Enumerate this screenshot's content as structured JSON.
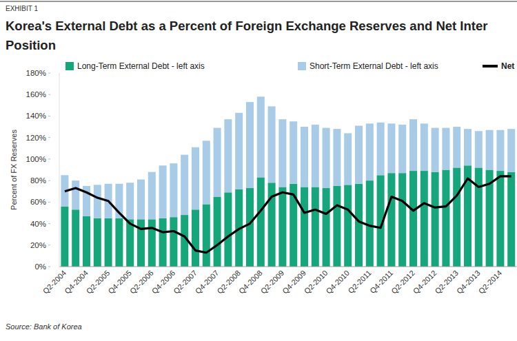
{
  "chart_data": {
    "type": "bar",
    "stacked": true,
    "annotations": [
      "EXHIBIT 1",
      "Source: Bank of Korea"
    ],
    "title": [
      "Korea's External Debt as a Percent of Foreign Exchange Reserves and Net Inter",
      "Position"
    ],
    "y_label": "Percent of FX Reserves",
    "categories": [
      "Q2-2004",
      null,
      "Q4-2004",
      null,
      "Q2-2005",
      null,
      "Q4-2005",
      null,
      "Q2-2006",
      null,
      "Q4-2006",
      null,
      "Q2-2007",
      null,
      "Q4-2007",
      null,
      "Q2-2008",
      null,
      "Q4-2008",
      null,
      "Q2-2009",
      null,
      "Q4-2009",
      null,
      "Q2-2010",
      null,
      "Q4-2010",
      null,
      "Q2-2011",
      null,
      "Q4-2011",
      null,
      "Q2-2012",
      null,
      "Q4-2012",
      null,
      "Q2-2013",
      null,
      "Q4-2013",
      null,
      "Q2-2014",
      null
    ],
    "series": [
      {
        "name": "Long-Term External Debt - left axis",
        "color": "#16a67c",
        "values": [
          56,
          53,
          47,
          45,
          45,
          45,
          44,
          44,
          44,
          45,
          46,
          48,
          53,
          58,
          65,
          69,
          72,
          73,
          83,
          78,
          74,
          77,
          74,
          74,
          73,
          75,
          76,
          77,
          80,
          85,
          87,
          87,
          89,
          89,
          88,
          90,
          92,
          94,
          92,
          90,
          89,
          88
        ]
      },
      {
        "name": "Short-Term External Debt - left axis",
        "color": "#a8cbe8",
        "values": [
          29,
          27,
          28,
          31,
          32,
          32,
          34,
          37,
          44,
          49,
          50,
          56,
          58,
          59,
          64,
          68,
          71,
          80,
          75,
          71,
          63,
          58,
          56,
          58,
          56,
          53,
          48,
          54,
          53,
          49,
          46,
          45,
          48,
          44,
          41,
          39,
          38,
          34,
          34,
          37,
          38,
          40
        ]
      },
      {
        "name": "Net",
        "color": "#000000",
        "type": "line",
        "values": [
          70,
          73,
          69,
          64,
          61,
          50,
          40,
          35,
          36,
          32,
          33,
          28,
          15,
          13,
          20,
          28,
          35,
          40,
          52,
          65,
          69,
          67,
          50,
          53,
          49,
          57,
          53,
          42,
          38,
          36,
          65,
          61,
          52,
          59,
          55,
          56,
          66,
          82,
          74,
          77,
          84,
          84
        ]
      }
    ],
    "ylim": [
      0,
      180
    ],
    "yticks": [
      {
        "value": 0,
        "label": "0%"
      },
      {
        "value": 20,
        "label": "20%"
      },
      {
        "value": 40,
        "label": "40%"
      },
      {
        "value": 60,
        "label": "60%"
      },
      {
        "value": 80,
        "label": "80%"
      },
      {
        "value": 100,
        "label": "100%"
      },
      {
        "value": 120,
        "label": "120%"
      },
      {
        "value": 140,
        "label": "140%"
      },
      {
        "value": 160,
        "label": "160%"
      },
      {
        "value": 180,
        "label": "180%"
      }
    ],
    "grid": false,
    "legend": "top"
  }
}
